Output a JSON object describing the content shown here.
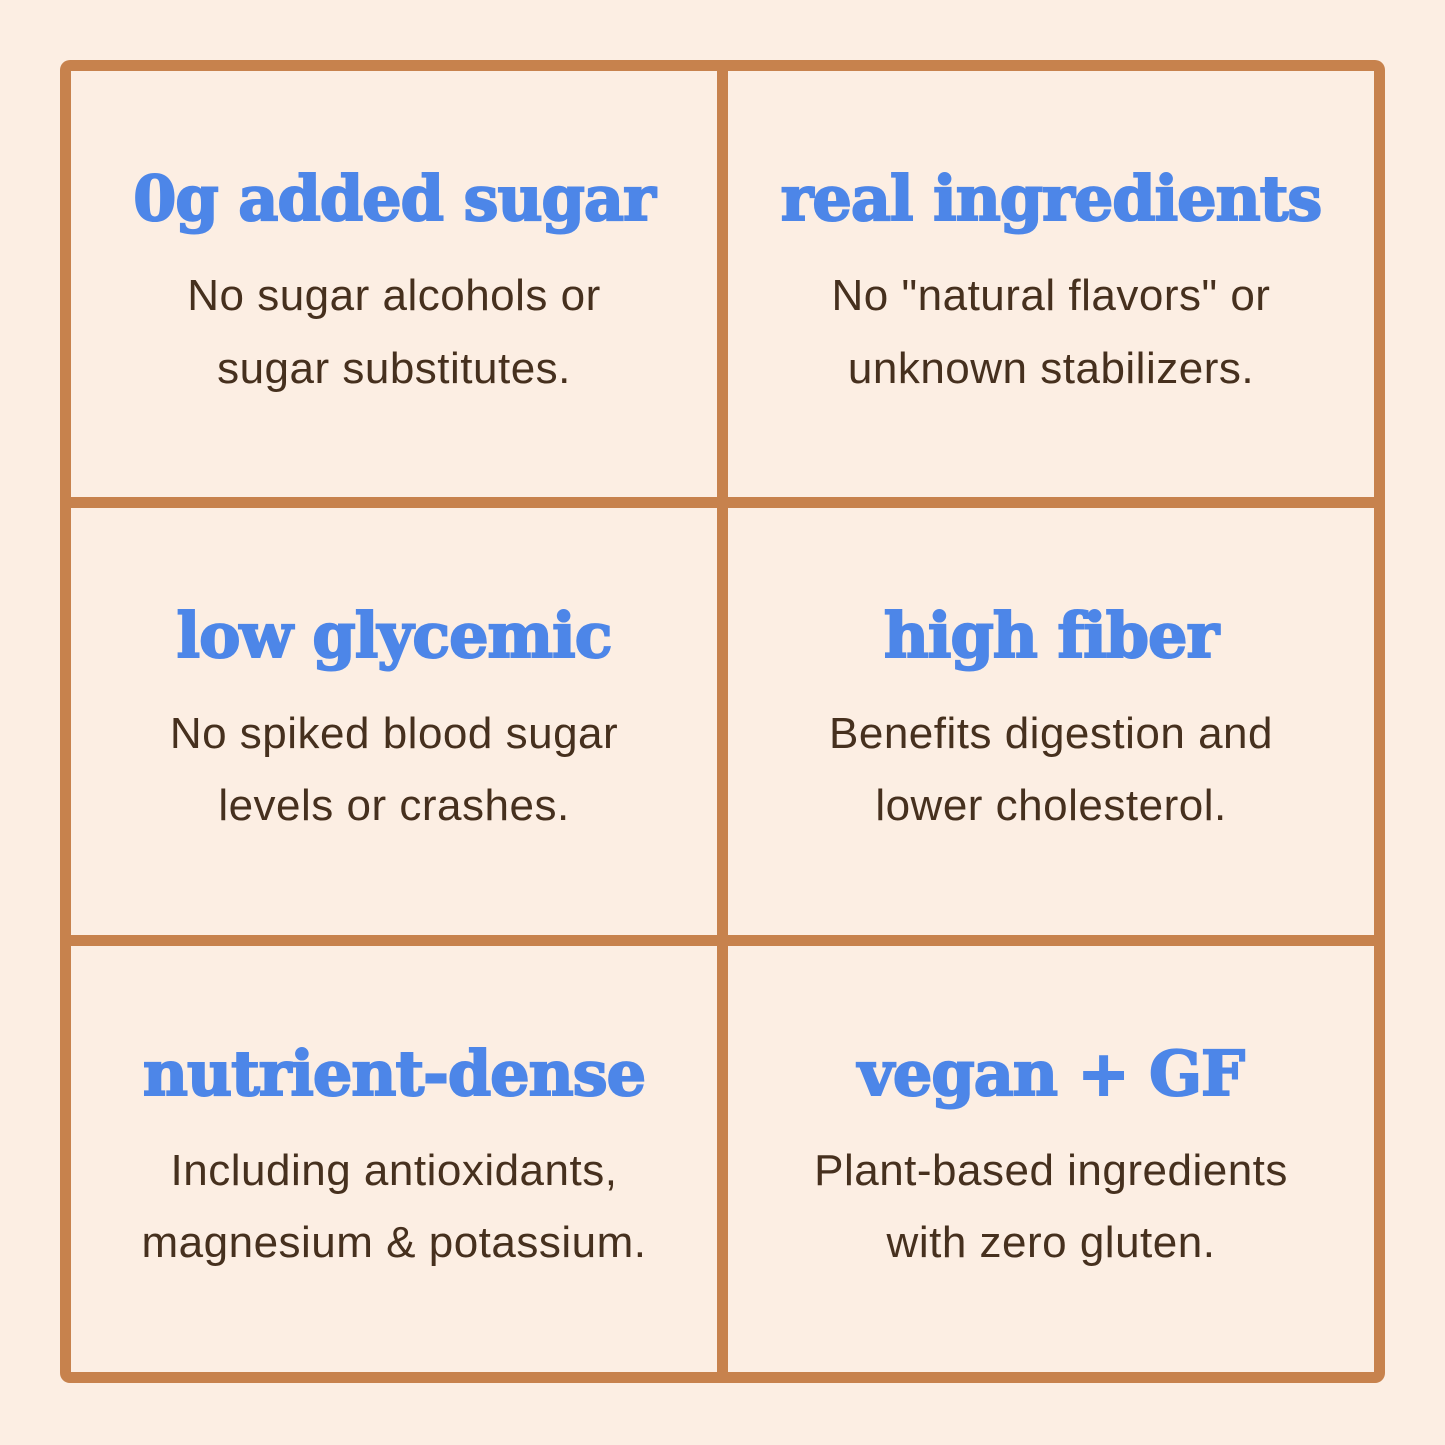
{
  "colors": {
    "background": "#FCEEE3",
    "frame": "#C7824D",
    "heading": "#4D86E8",
    "body_text": "#46301E"
  },
  "cards": [
    {
      "title": "0g added sugar",
      "lines": [
        "No sugar alcohols or",
        "sugar substitutes."
      ]
    },
    {
      "title": "real ingredients",
      "lines": [
        "No \"natural flavors\" or",
        "unknown stabilizers."
      ]
    },
    {
      "title": "low glycemic",
      "lines": [
        "No spiked blood sugar",
        "levels or crashes."
      ]
    },
    {
      "title": "high fiber",
      "lines": [
        "Benefits digestion and",
        "lower cholesterol."
      ]
    },
    {
      "title": "nutrient-dense",
      "lines": [
        "Including antioxidants,",
        "magnesium & potassium."
      ]
    },
    {
      "title": "vegan + GF",
      "lines": [
        "Plant-based ingredients",
        "with zero gluten."
      ]
    }
  ]
}
